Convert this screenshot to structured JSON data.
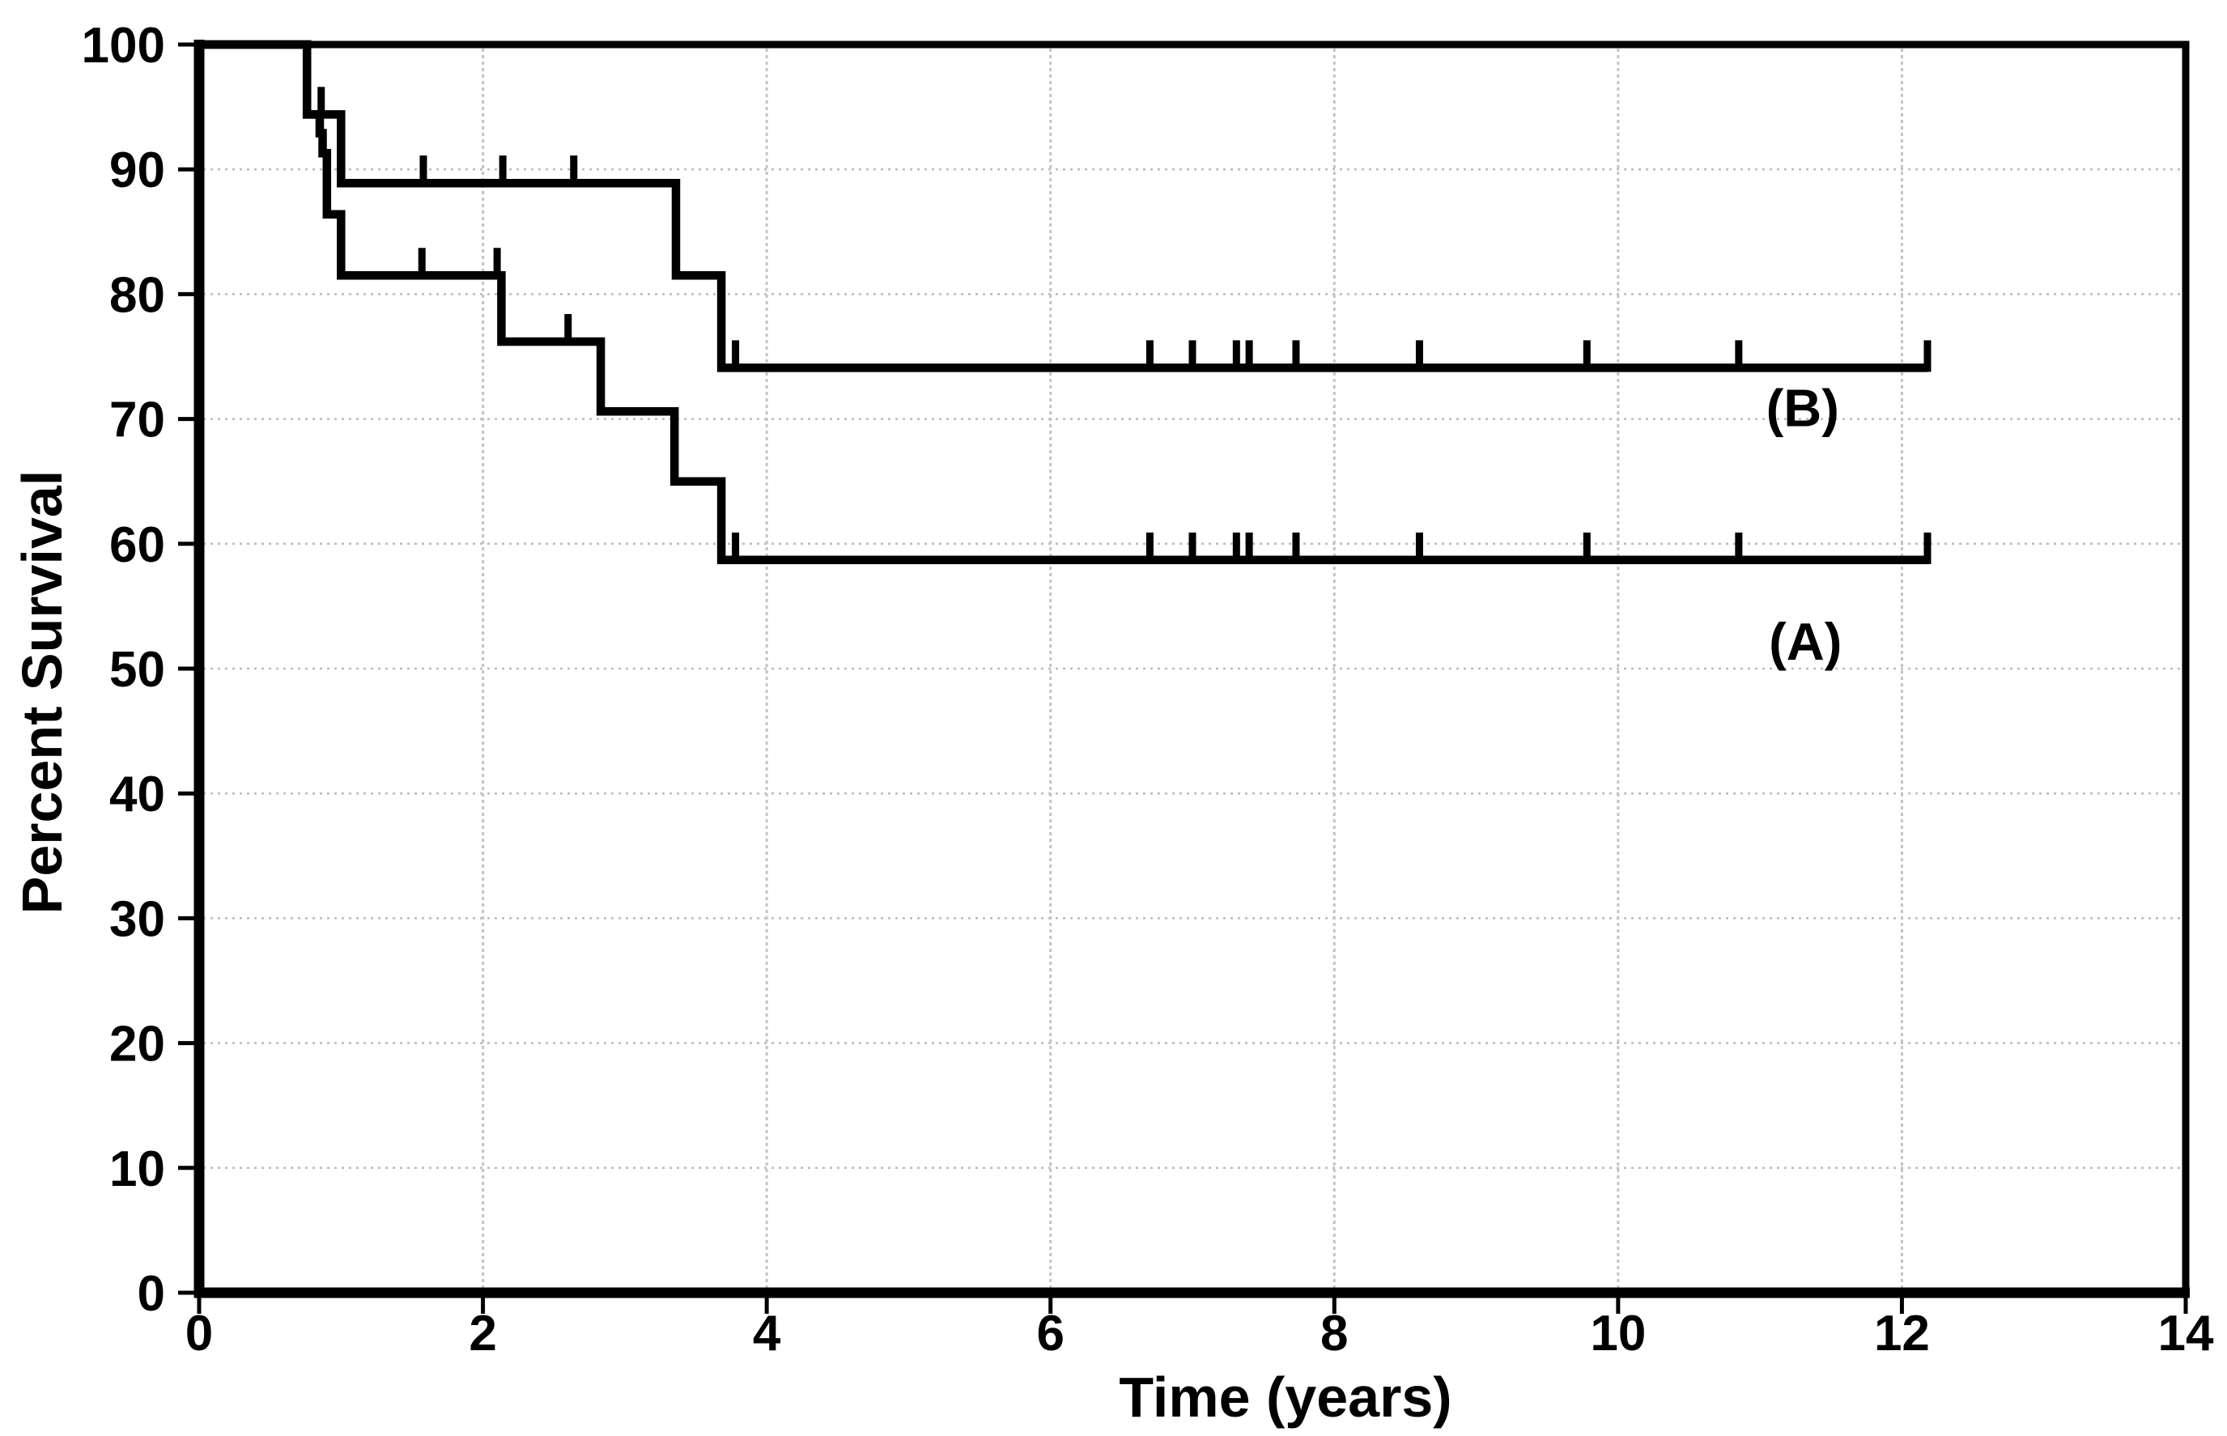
{
  "figure": {
    "background": "#ffffff",
    "line_color": "#000000",
    "grid_color_h": "#bbbbbb",
    "grid_color_v": "#c4c4c4"
  },
  "chart_data": {
    "type": "line",
    "subtype": "kaplan_meier_step",
    "title": "",
    "xlabel": "Time (years)",
    "ylabel": "Percent Survival",
    "xlim": [
      0,
      14
    ],
    "ylim": [
      0,
      100
    ],
    "xticks": [
      0,
      2,
      4,
      6,
      8,
      10,
      12,
      14
    ],
    "yticks": [
      0,
      10,
      20,
      30,
      40,
      50,
      60,
      70,
      80,
      90,
      100
    ],
    "grid": {
      "horizontal_at": [
        10,
        20,
        30,
        40,
        50,
        60,
        70,
        80,
        90
      ],
      "vertical_at": [
        2,
        4,
        6,
        8,
        10,
        12
      ],
      "style": "dotted-light-gray"
    },
    "legend_position": "inline-labels-right",
    "series": [
      {
        "name": "B",
        "label": "(B)",
        "label_anchor": {
          "x": 11.3,
          "y": 70.9
        },
        "steps": [
          [
            0,
            100
          ],
          [
            0.76,
            100
          ],
          [
            0.76,
            94.4
          ],
          [
            1.0,
            94.4
          ],
          [
            1.0,
            88.9
          ],
          [
            3.36,
            88.9
          ],
          [
            3.36,
            81.5
          ],
          [
            3.68,
            81.5
          ],
          [
            3.68,
            74.1
          ],
          [
            12.18,
            74.1
          ]
        ],
        "censor_ticks": [
          [
            0.86,
            94.4
          ],
          [
            1.58,
            88.9
          ],
          [
            2.14,
            88.9
          ],
          [
            2.64,
            88.9
          ],
          [
            3.78,
            74.1
          ],
          [
            6.7,
            74.1
          ],
          [
            7.0,
            74.1
          ],
          [
            7.31,
            74.1
          ],
          [
            7.4,
            74.1
          ],
          [
            7.73,
            74.1
          ],
          [
            8.6,
            74.1
          ],
          [
            9.78,
            74.1
          ],
          [
            10.85,
            74.1
          ],
          [
            12.18,
            74.1
          ]
        ]
      },
      {
        "name": "A",
        "label": "(A)",
        "label_anchor": {
          "x": 11.32,
          "y": 52.2
        },
        "steps": [
          [
            0,
            100
          ],
          [
            0.76,
            100
          ],
          [
            0.76,
            94.4
          ],
          [
            0.85,
            94.4
          ],
          [
            0.85,
            92.9
          ],
          [
            0.87,
            92.9
          ],
          [
            0.87,
            91.3
          ],
          [
            0.9,
            91.3
          ],
          [
            0.9,
            86.4
          ],
          [
            1.0,
            86.4
          ],
          [
            1.0,
            81.5
          ],
          [
            2.13,
            81.5
          ],
          [
            2.13,
            76.2
          ],
          [
            2.83,
            76.2
          ],
          [
            2.83,
            70.6
          ],
          [
            3.35,
            70.6
          ],
          [
            3.35,
            65.0
          ],
          [
            3.68,
            65.0
          ],
          [
            3.68,
            58.7
          ],
          [
            12.18,
            58.7
          ]
        ],
        "censor_ticks": [
          [
            1.57,
            81.5
          ],
          [
            2.1,
            81.5
          ],
          [
            2.6,
            76.2
          ],
          [
            3.78,
            58.7
          ],
          [
            6.7,
            58.7
          ],
          [
            7.0,
            58.7
          ],
          [
            7.31,
            58.7
          ],
          [
            7.4,
            58.7
          ],
          [
            7.73,
            58.7
          ],
          [
            8.6,
            58.7
          ],
          [
            9.78,
            58.7
          ],
          [
            10.85,
            58.7
          ],
          [
            12.18,
            58.7
          ]
        ]
      }
    ]
  }
}
